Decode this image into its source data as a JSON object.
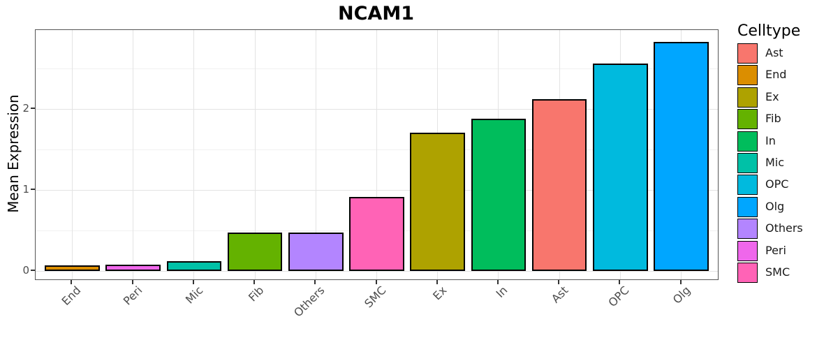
{
  "title": "NCAM1",
  "ylabel": "Mean Expression",
  "legend": {
    "title": "Celltype",
    "items": [
      {
        "label": "Ast",
        "color": "#F8766D"
      },
      {
        "label": "End",
        "color": "#DB8E00"
      },
      {
        "label": "Ex",
        "color": "#AEA200"
      },
      {
        "label": "Fib",
        "color": "#64B200"
      },
      {
        "label": "In",
        "color": "#00BD5C"
      },
      {
        "label": "Mic",
        "color": "#00C1A7"
      },
      {
        "label": "OPC",
        "color": "#00BADE"
      },
      {
        "label": "Olg",
        "color": "#00A6FF"
      },
      {
        "label": "Others",
        "color": "#B385FF"
      },
      {
        "label": "Peri",
        "color": "#EF67EB"
      },
      {
        "label": "SMC",
        "color": "#FF63B6"
      }
    ]
  },
  "chart_data": {
    "type": "bar",
    "title": "NCAM1",
    "xlabel": "",
    "ylabel": "Mean Expression",
    "categories": [
      "End",
      "Peri",
      "Mic",
      "Fib",
      "Others",
      "SMC",
      "Ex",
      "In",
      "Ast",
      "OPC",
      "Olg"
    ],
    "values": [
      0.07,
      0.08,
      0.12,
      0.47,
      0.47,
      0.91,
      1.71,
      1.88,
      2.12,
      2.56,
      2.83
    ],
    "bar_colors": [
      "#DB8E00",
      "#EF67EB",
      "#00C1A7",
      "#64B200",
      "#B385FF",
      "#FF63B6",
      "#AEA200",
      "#00BD5C",
      "#F8766D",
      "#00BADE",
      "#00A6FF"
    ],
    "yticks": [
      0,
      1,
      2
    ],
    "minor_gridlines": [
      0.5,
      1.5,
      2.5
    ],
    "ylim": [
      -0.1,
      2.97
    ],
    "bar_width_fraction": 0.9,
    "bar_edge_color": "#000000",
    "grid": true,
    "legend_position": "right",
    "legend_title": "Celltype"
  }
}
